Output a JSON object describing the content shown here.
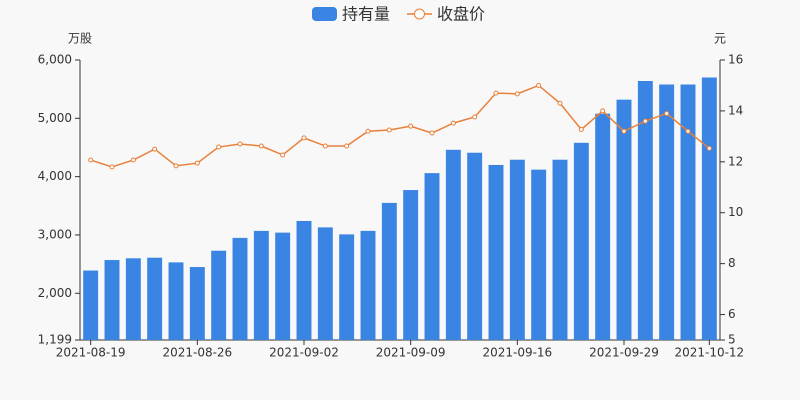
{
  "chart_data": {
    "type": "bar-line",
    "y_unit": "万股",
    "y2_unit": "元",
    "categories": [
      "2021-08-19",
      null,
      null,
      null,
      null,
      "2021-08-26",
      null,
      null,
      null,
      null,
      "2021-09-02",
      null,
      null,
      null,
      null,
      "2021-09-09",
      null,
      null,
      null,
      null,
      "2021-09-16",
      null,
      null,
      null,
      null,
      "2021-09-29",
      null,
      null,
      null,
      "2021-10-12"
    ],
    "series": [
      {
        "name": "持有量",
        "color": "#3a84e3",
        "type": "bar",
        "values": [
          2390,
          2570,
          2600,
          2610,
          2530,
          2450,
          2730,
          2950,
          3070,
          3040,
          3240,
          3130,
          3010,
          3070,
          3550,
          3770,
          4060,
          4460,
          4410,
          4200,
          4290,
          4120,
          4290,
          4580,
          5080,
          5320,
          5640,
          5580,
          5580,
          5700
        ]
      },
      {
        "name": "收盘价",
        "color": "#e8803a",
        "type": "line",
        "axis": "y2",
        "values": [
          12.07,
          11.8,
          12.07,
          12.5,
          11.84,
          11.95,
          12.58,
          12.7,
          12.62,
          12.27,
          12.94,
          12.62,
          12.62,
          13.2,
          13.25,
          13.4,
          13.13,
          13.52,
          13.76,
          14.7,
          14.67,
          15.0,
          14.3,
          13.27,
          14.0,
          13.2,
          13.6,
          13.9,
          13.2,
          12.53
        ]
      }
    ],
    "ylim": [
      1199,
      6000
    ],
    "yticks": [
      {
        "value": 1199,
        "label": "1,199"
      },
      {
        "value": 2000,
        "label": "2,000"
      },
      {
        "value": 3000,
        "label": "3,000"
      },
      {
        "value": 4000,
        "label": "4,000"
      },
      {
        "value": 5000,
        "label": "5,000"
      },
      {
        "value": 6000,
        "label": "6,000"
      }
    ],
    "y2lim": [
      5,
      16
    ],
    "y2ticks": [
      5,
      6,
      8,
      10,
      12,
      14,
      16
    ]
  }
}
